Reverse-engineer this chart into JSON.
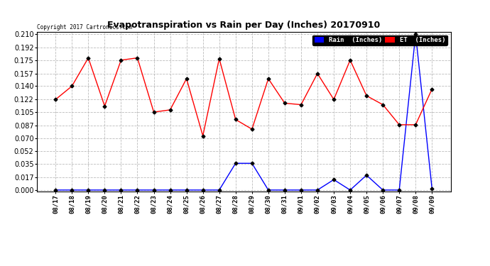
{
  "title": "Evapotranspiration vs Rain per Day (Inches) 20170910",
  "copyright": "Copyright 2017 Cartronics.com",
  "background_color": "#ffffff",
  "plot_bg_color": "#ffffff",
  "grid_color": "#bbbbbb",
  "x_labels": [
    "08/17",
    "08/18",
    "08/19",
    "08/20",
    "08/21",
    "08/22",
    "08/23",
    "08/24",
    "08/25",
    "08/26",
    "08/27",
    "08/28",
    "08/29",
    "08/30",
    "08/31",
    "09/01",
    "09/02",
    "09/03",
    "09/04",
    "09/05",
    "09/06",
    "09/07",
    "09/08",
    "09/09"
  ],
  "rain_inches": [
    0.0,
    0.0,
    0.0,
    0.0,
    0.0,
    0.0,
    0.0,
    0.0,
    0.0,
    0.0,
    0.0,
    0.036,
    0.036,
    0.0,
    0.0,
    0.0,
    0.0,
    0.014,
    0.0,
    0.02,
    0.0,
    0.0,
    0.21,
    0.002
  ],
  "et_inches": [
    0.122,
    0.14,
    0.178,
    0.113,
    0.175,
    0.178,
    0.105,
    0.108,
    0.15,
    0.073,
    0.177,
    0.095,
    0.082,
    0.15,
    0.117,
    0.115,
    0.157,
    0.122,
    0.175,
    0.127,
    0.115,
    0.088,
    0.088,
    0.136
  ],
  "rain_color": "#0000ff",
  "et_color": "#ff0000",
  "marker_color": "#000000",
  "ylim": [
    -0.002,
    0.213
  ],
  "yticks": [
    0.0,
    0.017,
    0.035,
    0.052,
    0.07,
    0.087,
    0.105,
    0.122,
    0.14,
    0.157,
    0.175,
    0.192,
    0.21
  ],
  "legend_rain_bg": "#0000ff",
  "legend_et_bg": "#ff0000",
  "legend_rain_text": "Rain  (Inches)",
  "legend_et_text": "ET  (Inches)"
}
